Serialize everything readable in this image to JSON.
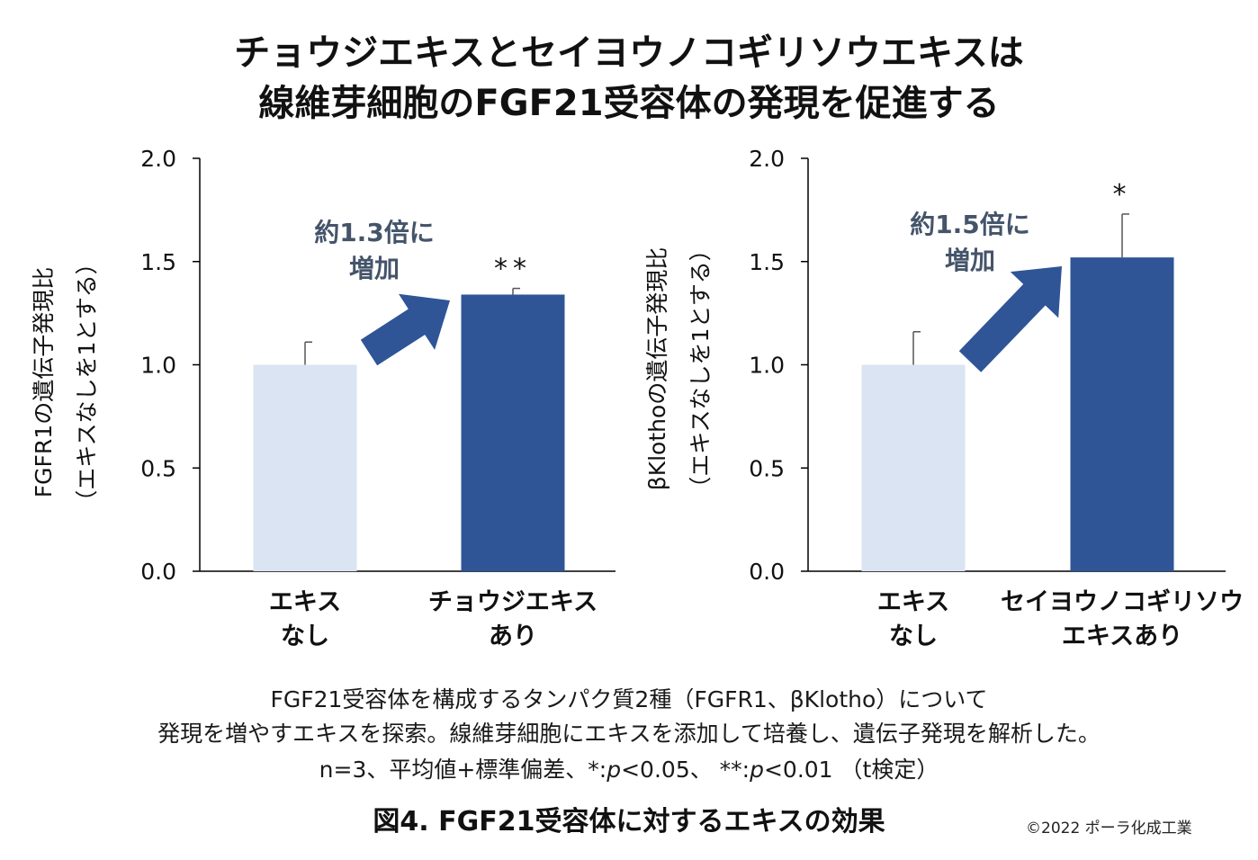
{
  "title": {
    "line1": "チョウジエキスとセイヨウノコギリソウエキスは",
    "line2": "線維芽細胞のFGF21受容体の発現を促進する"
  },
  "colors": {
    "control_bar": "#dbe4f2",
    "treated_bar": "#2f5597",
    "arrow": "#2f5597",
    "annotation_text": "#44546a",
    "axis": "#000000"
  },
  "chart_data": [
    {
      "type": "bar",
      "ylabel_line1": "FGFR1の遺伝子発現比",
      "ylabel_line2": "（エキスなしを1とする）",
      "ylim": [
        0,
        2.0
      ],
      "yticks": [
        "0.0",
        "0.5",
        "1.0",
        "1.5",
        "2.0"
      ],
      "ytick_values": [
        0,
        0.5,
        1.0,
        1.5,
        2.0
      ],
      "categories": [
        [
          "エキス",
          "なし"
        ],
        [
          "チョウジエキス",
          "あり"
        ]
      ],
      "values": [
        1.0,
        1.34
      ],
      "errors": [
        0.11,
        0.03
      ],
      "significance": [
        "",
        "**"
      ],
      "annotation": [
        "約1.3倍に",
        "増加"
      ]
    },
    {
      "type": "bar",
      "ylabel_line1": "βKlothoの遺伝子発現比",
      "ylabel_line2": "（エキスなしを1とする）",
      "ylim": [
        0,
        2.0
      ],
      "yticks": [
        "0.0",
        "0.5",
        "1.0",
        "1.5",
        "2.0"
      ],
      "ytick_values": [
        0,
        0.5,
        1.0,
        1.5,
        2.0
      ],
      "categories": [
        [
          "エキス",
          "なし"
        ],
        [
          "セイヨウノコギリソウ",
          "エキスあり"
        ]
      ],
      "values": [
        1.0,
        1.52
      ],
      "errors": [
        0.16,
        0.21
      ],
      "significance": [
        "",
        "*"
      ],
      "annotation": [
        "約1.5倍に",
        "増加"
      ]
    }
  ],
  "caption": {
    "line1": "FGF21受容体を構成するタンパク質2種（FGFR1、βKlotho）について",
    "line2": "発現を増やすエキスを探索。線維芽細胞にエキスを添加して培養し、遺伝子発現を解析した。",
    "line3_a": "n=3、平均値+標準偏差、*:",
    "line3_p1": "p",
    "line3_b": "<0.05、 **:",
    "line3_p2": "p",
    "line3_c": "<0.01 （t検定）"
  },
  "figure_title": "図4. FGF21受容体に対するエキスの効果",
  "copyright": "©2022 ポーラ化成工業"
}
